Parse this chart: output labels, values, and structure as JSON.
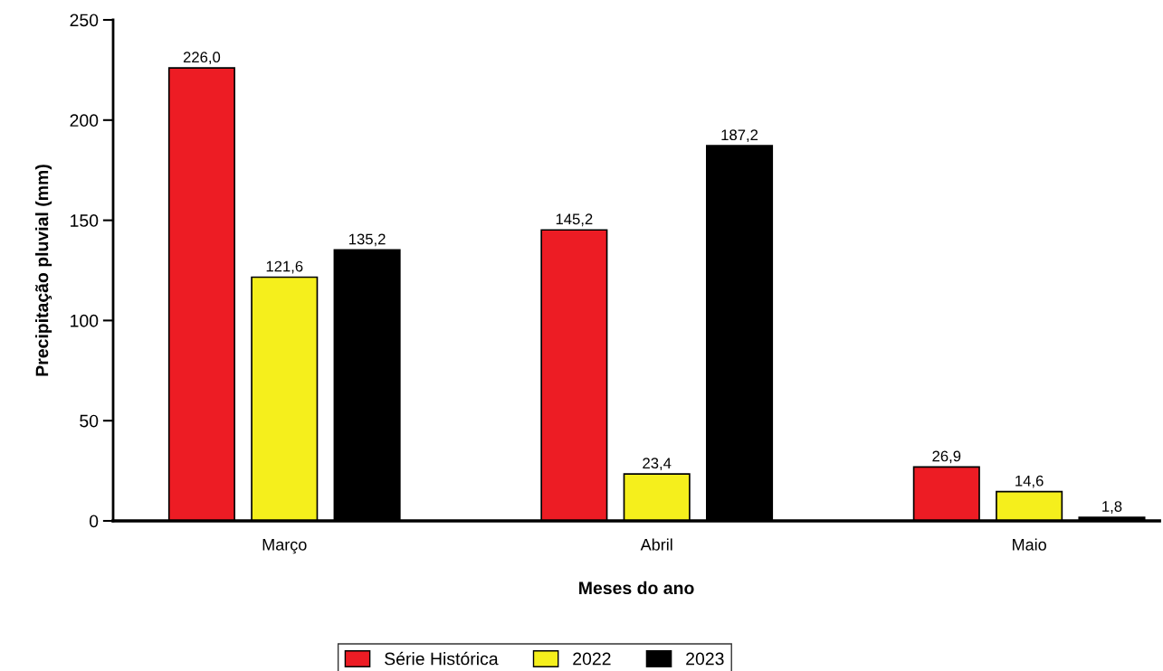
{
  "chart_data": {
    "type": "bar",
    "xlabel": "Meses do ano",
    "ylabel": "Precipitação pluvial (mm)",
    "categories": [
      "Março",
      "Abril",
      "Maio"
    ],
    "series": [
      {
        "name": "Série Histórica",
        "color": "#ed1c24",
        "values": [
          226.0,
          145.2,
          26.9
        ],
        "value_labels": [
          "226,0",
          "145,2",
          "26,9"
        ]
      },
      {
        "name": "2022",
        "color": "#f5ef1c",
        "values": [
          121.6,
          23.4,
          14.6
        ],
        "value_labels": [
          "121,6",
          "23,4",
          "14,6"
        ]
      },
      {
        "name": "2023",
        "color": "#000000",
        "values": [
          135.2,
          187.2,
          1.8
        ],
        "value_labels": [
          "135,2",
          "187,2",
          "1,8"
        ]
      }
    ],
    "ylim": [
      0,
      250
    ],
    "yticks": [
      0,
      50,
      100,
      150,
      200,
      250
    ],
    "grid": false,
    "legend": "bottom"
  }
}
